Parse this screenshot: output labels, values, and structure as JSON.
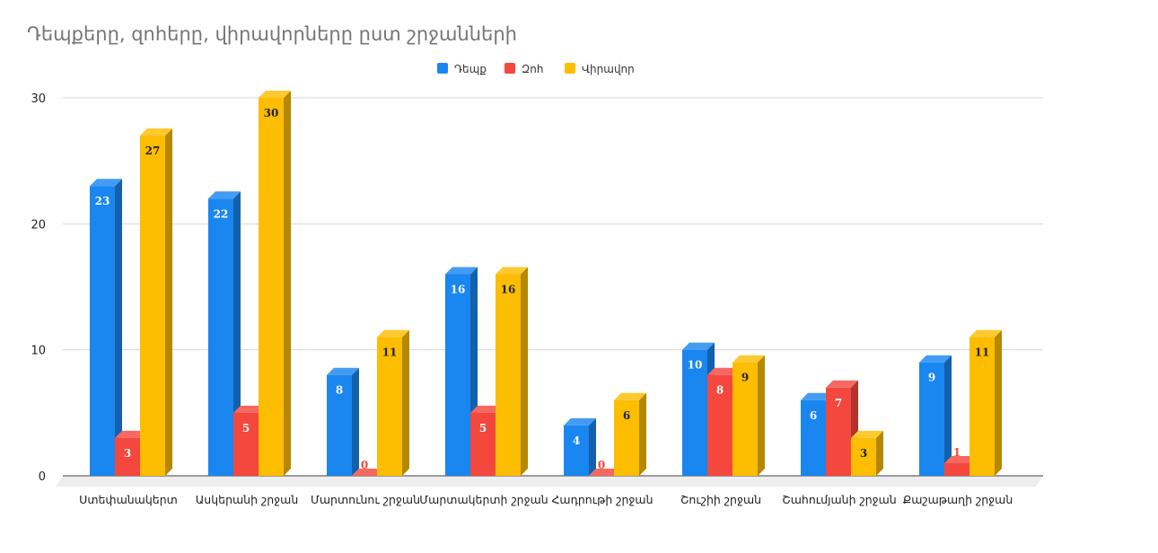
{
  "chart_data": {
    "type": "bar",
    "title": "Դեպքերը, զոհերը, վիրավորները ըստ շրջանների",
    "categories": [
      "Ստեփանակերտ",
      "Ասկերանի շրջան",
      "Մարտունու շրջան",
      "Մարտակերտի շրջան",
      "Հադրութի շրջան",
      "Շուշիի շրջան",
      "Շահումյանի շրջան",
      "Քաշաթաղի շրջան"
    ],
    "series": [
      {
        "name": "Դեպք",
        "color": "#1a86f0",
        "values": [
          23,
          22,
          8,
          16,
          4,
          10,
          6,
          9
        ]
      },
      {
        "name": "Զոհ",
        "color": "#f4473d",
        "values": [
          3,
          5,
          0,
          5,
          0,
          8,
          7,
          1
        ]
      },
      {
        "name": "Վիրավոր",
        "color": "#fdbd00",
        "values": [
          27,
          30,
          11,
          16,
          6,
          9,
          3,
          11
        ]
      }
    ],
    "yticks": [
      0,
      10,
      20,
      30
    ],
    "ylim": [
      0,
      30
    ],
    "grid": true,
    "legend_position": "top-center",
    "xlabel": "",
    "ylabel": ""
  }
}
